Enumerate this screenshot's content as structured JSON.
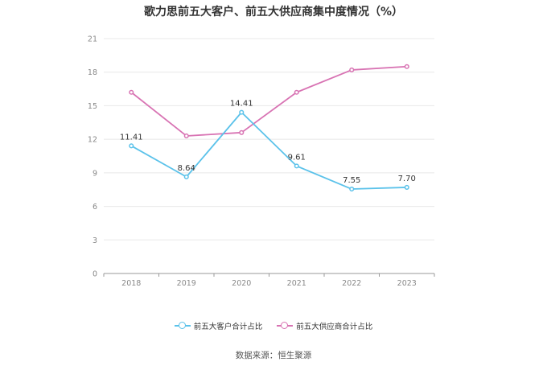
{
  "chart_data": {
    "type": "line",
    "title": "歌力思前五大客户、前五大供应商集中度情况（%）",
    "categories": [
      "2018",
      "2019",
      "2020",
      "2021",
      "2022",
      "2023"
    ],
    "ylim": [
      0,
      21
    ],
    "yticks": [
      "0",
      "3",
      "6",
      "9",
      "12",
      "15",
      "18",
      "21"
    ],
    "grid": true,
    "legend_position": "bottom",
    "series": [
      {
        "name": "前五大客户合计占比",
        "color": "#5bc2ea",
        "values": [
          11.41,
          8.64,
          14.41,
          9.61,
          7.55,
          7.7
        ],
        "labels": [
          "11.41",
          "8.64",
          "14.41",
          "9.61",
          "7.55",
          "7.70"
        ]
      },
      {
        "name": "前五大供应商合计占比",
        "color": "#d873b3",
        "values": [
          16.2,
          12.3,
          12.6,
          16.2,
          18.2,
          18.5
        ],
        "labels": []
      }
    ]
  },
  "source": "数据来源：恒生聚源"
}
